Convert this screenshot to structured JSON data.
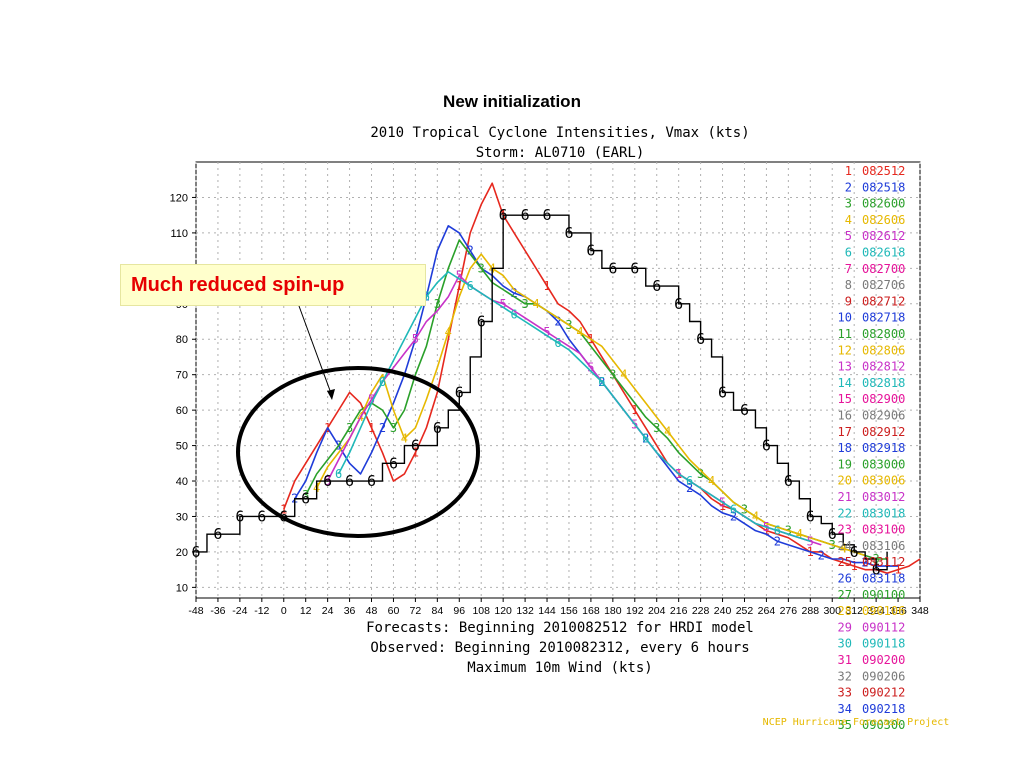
{
  "slide": {
    "title": "New initialization",
    "callout": "Much reduced spin-up"
  },
  "chart_data": {
    "type": "line",
    "title": "2010 Tropical Cyclone Intensities, Vmax (kts)",
    "subtitle": "Storm: AL0710 (EARL)",
    "footer_lines": [
      "Forecasts: Beginning 2010082512 for HRDI model",
      "Observed: Beginning 2010082312, every 6 hours",
      "Maximum 10m Wind (kts)"
    ],
    "credit": "NCEP Hurricane Forecast Project",
    "x_ticks": [
      -48,
      -36,
      -24,
      -12,
      0,
      12,
      24,
      36,
      48,
      60,
      72,
      84,
      96,
      108,
      120,
      132,
      144,
      156,
      168,
      180,
      192,
      204,
      216,
      228,
      240,
      252,
      264,
      276,
      288,
      300,
      312,
      324,
      336,
      348
    ],
    "y_ticks": [
      10,
      20,
      30,
      40,
      50,
      60,
      70,
      80,
      90,
      100,
      110,
      120
    ],
    "xlim": [
      -48,
      348
    ],
    "ylim": [
      7,
      130
    ],
    "grid": true,
    "legend_placement": "right",
    "legend": [
      {
        "num": "1",
        "label": "082512",
        "color": "#e6281e"
      },
      {
        "num": "2",
        "label": "082518",
        "color": "#1f3cd9"
      },
      {
        "num": "3",
        "label": "082600",
        "color": "#2aa02a"
      },
      {
        "num": "4",
        "label": "082606",
        "color": "#e6b800"
      },
      {
        "num": "5",
        "label": "082612",
        "color": "#c832c8"
      },
      {
        "num": "6",
        "label": "082618",
        "color": "#1fb8b8"
      },
      {
        "num": "7",
        "label": "082700",
        "color": "#e6149a"
      },
      {
        "num": "8",
        "label": "082706",
        "color": "#7a7a7a"
      },
      {
        "num": "9",
        "label": "082712",
        "color": "#cc1e1e"
      },
      {
        "num": "10",
        "label": "082718",
        "color": "#1f3cd9"
      },
      {
        "num": "11",
        "label": "082800",
        "color": "#2aa02a"
      },
      {
        "num": "12",
        "label": "082806",
        "color": "#e6b800"
      },
      {
        "num": "13",
        "label": "082812",
        "color": "#c832c8"
      },
      {
        "num": "14",
        "label": "082818",
        "color": "#1fb8b8"
      },
      {
        "num": "15",
        "label": "082900",
        "color": "#e6149a"
      },
      {
        "num": "16",
        "label": "082906",
        "color": "#7a7a7a"
      },
      {
        "num": "17",
        "label": "082912",
        "color": "#cc1e1e"
      },
      {
        "num": "18",
        "label": "082918",
        "color": "#1f3cd9"
      },
      {
        "num": "19",
        "label": "083000",
        "color": "#2aa02a"
      },
      {
        "num": "20",
        "label": "083006",
        "color": "#e6b800"
      },
      {
        "num": "21",
        "label": "083012",
        "color": "#c832c8"
      },
      {
        "num": "22",
        "label": "083018",
        "color": "#1fb8b8"
      },
      {
        "num": "23",
        "label": "083100",
        "color": "#e6149a"
      },
      {
        "num": "24",
        "label": "083106",
        "color": "#7a7a7a"
      },
      {
        "num": "25",
        "label": "083112",
        "color": "#cc1e1e"
      },
      {
        "num": "26",
        "label": "083118",
        "color": "#1f3cd9"
      },
      {
        "num": "27",
        "label": "090100",
        "color": "#2aa02a"
      },
      {
        "num": "28",
        "label": "090106",
        "color": "#e6b800"
      },
      {
        "num": "29",
        "label": "090112",
        "color": "#c832c8"
      },
      {
        "num": "30",
        "label": "090118",
        "color": "#1fb8b8"
      },
      {
        "num": "31",
        "label": "090200",
        "color": "#e6149a"
      },
      {
        "num": "32",
        "label": "090206",
        "color": "#7a7a7a"
      },
      {
        "num": "33",
        "label": "090212",
        "color": "#cc1e1e"
      },
      {
        "num": "34",
        "label": "090218",
        "color": "#1f3cd9"
      },
      {
        "num": "35",
        "label": "090300",
        "color": "#2aa02a"
      }
    ],
    "observed": {
      "marker": "6",
      "color": "#000000",
      "x": [
        -48,
        -42,
        -36,
        -30,
        -24,
        -18,
        -12,
        -6,
        0,
        6,
        12,
        18,
        24,
        30,
        36,
        42,
        48,
        54,
        60,
        66,
        72,
        78,
        84,
        90,
        96,
        102,
        108,
        114,
        120,
        126,
        132,
        138,
        144,
        150,
        156,
        162,
        168,
        174,
        180,
        186,
        192,
        198,
        204,
        210,
        216,
        222,
        228,
        234,
        240,
        246,
        252,
        258,
        264,
        270,
        276,
        282,
        288,
        294,
        300,
        306,
        312,
        318,
        324,
        330
      ],
      "y": [
        20,
        25,
        25,
        25,
        30,
        30,
        30,
        30,
        30,
        35,
        35,
        40,
        40,
        40,
        40,
        40,
        40,
        45,
        45,
        50,
        50,
        50,
        55,
        60,
        65,
        75,
        85,
        100,
        115,
        115,
        115,
        115,
        115,
        115,
        110,
        110,
        105,
        100,
        100,
        100,
        100,
        95,
        95,
        95,
        90,
        85,
        80,
        75,
        65,
        60,
        60,
        55,
        50,
        45,
        40,
        35,
        30,
        28,
        25,
        22,
        20,
        18,
        15,
        20
      ]
    },
    "series": [
      {
        "name": "082512",
        "start": 0,
        "values": [
          32,
          40,
          45,
          50,
          55,
          60,
          65,
          62,
          55,
          48,
          40,
          42,
          48,
          55,
          65,
          80,
          95,
          110,
          118,
          124,
          115,
          110,
          105,
          100,
          95,
          90,
          88,
          85,
          80,
          75,
          70,
          65,
          60,
          55,
          50,
          45,
          42,
          40,
          38,
          35,
          33,
          32,
          30,
          28,
          26,
          25,
          24,
          22,
          20,
          20,
          18,
          17,
          16,
          15,
          15,
          14,
          15,
          16,
          18
        ]
      },
      {
        "name": "082518",
        "start": 6,
        "values": [
          35,
          40,
          48,
          55,
          50,
          45,
          42,
          48,
          55,
          62,
          70,
          80,
          92,
          105,
          112,
          110,
          105,
          100,
          98,
          95,
          93,
          92,
          90,
          88,
          85,
          80,
          76,
          72,
          68,
          64,
          60,
          56,
          52,
          48,
          44,
          40,
          38,
          36,
          33,
          31,
          30,
          28,
          26,
          25,
          23,
          22,
          21,
          20,
          19,
          18,
          18,
          17,
          17,
          16,
          16,
          16
        ]
      },
      {
        "name": "082600",
        "start": 12,
        "values": [
          36,
          42,
          46,
          50,
          55,
          60,
          62,
          60,
          55,
          60,
          70,
          78,
          90,
          100,
          108,
          104,
          100,
          96,
          94,
          92,
          90,
          90,
          88,
          86,
          84,
          82,
          78,
          74,
          70,
          66,
          62,
          58,
          55,
          52,
          48,
          45,
          42,
          40,
          37,
          34,
          32,
          30,
          28,
          27,
          26,
          25,
          24,
          23,
          22,
          21,
          20,
          19,
          18,
          18
        ]
      },
      {
        "name": "082606",
        "start": 18,
        "values": [
          38,
          44,
          48,
          52,
          58,
          65,
          70,
          60,
          52,
          55,
          63,
          72,
          82,
          92,
          100,
          104,
          100,
          98,
          94,
          92,
          90,
          88,
          86,
          84,
          82,
          80,
          78,
          74,
          70,
          66,
          62,
          58,
          54,
          50,
          46,
          43,
          40,
          37,
          34,
          32,
          30,
          28,
          27,
          26,
          25,
          24,
          23,
          22,
          21,
          20,
          19
        ]
      },
      {
        "name": "082612",
        "start": 24,
        "values": [
          40,
          46,
          52,
          58,
          63,
          68,
          72,
          76,
          80,
          85,
          88,
          92,
          98,
          95,
          93,
          91,
          90,
          88,
          86,
          84,
          82,
          80,
          78,
          76,
          72,
          68,
          64,
          60,
          56,
          52,
          48,
          45,
          42,
          40,
          38,
          36,
          34,
          32,
          30,
          28,
          27,
          26,
          25,
          24,
          23,
          22
        ]
      },
      {
        "name": "082618",
        "start": 30,
        "values": [
          42,
          48,
          55,
          62,
          68,
          74,
          80,
          86,
          92,
          96,
          99,
          97,
          95,
          93,
          91,
          89,
          87,
          85,
          83,
          81,
          79,
          77,
          74,
          71,
          68,
          64,
          60,
          56,
          52,
          48,
          45,
          42,
          40,
          38,
          36,
          34,
          32,
          30,
          28,
          27,
          26,
          25,
          24,
          23
        ]
      }
    ]
  }
}
